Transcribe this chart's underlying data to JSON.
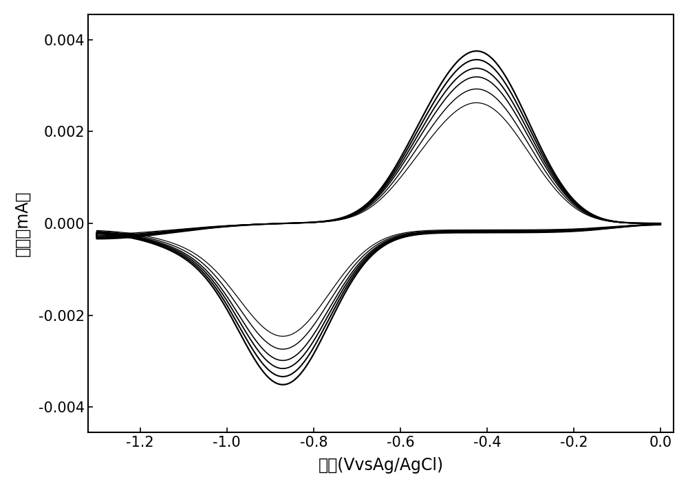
{
  "xlabel": "电压(VvsAg/AgCl)",
  "ylabel": "电流（mA）",
  "xlim": [
    -1.32,
    0.03
  ],
  "ylim": [
    -0.00455,
    0.00455
  ],
  "xticks": [
    -1.2,
    -1.0,
    -0.8,
    -0.6,
    -0.4,
    -0.2,
    0.0
  ],
  "yticks": [
    -0.004,
    -0.002,
    0.0,
    0.002,
    0.004
  ],
  "n_curves": 6,
  "background_color": "#ffffff",
  "line_color": "#000000",
  "figsize": [
    10.0,
    7.1
  ],
  "dpi": 100,
  "scales": [
    0.7,
    0.78,
    0.85,
    0.9,
    0.95,
    1.0
  ]
}
